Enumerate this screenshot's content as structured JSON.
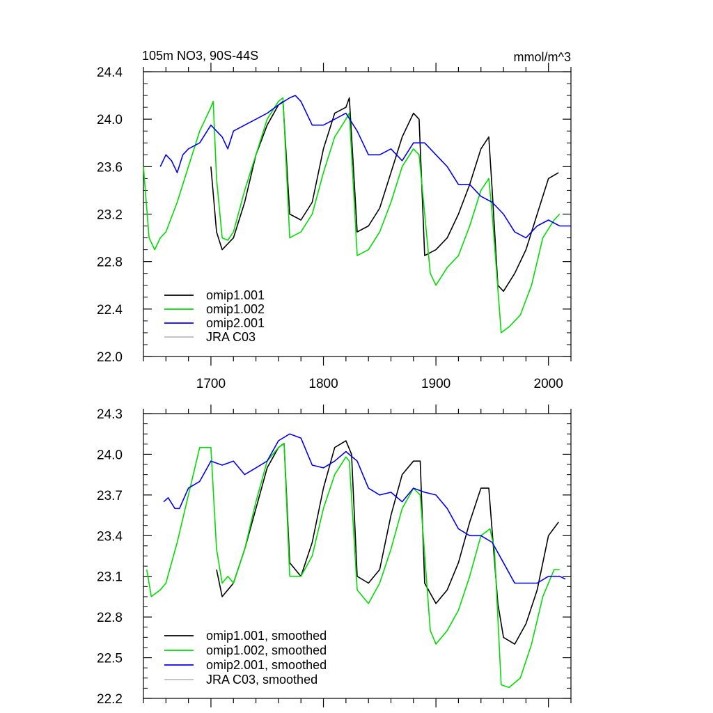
{
  "chart_data": [
    {
      "type": "line",
      "title": "105m NO3, 90S-44S",
      "units": "mmol/m^3",
      "xlim": [
        1640,
        2020
      ],
      "ylim": [
        22.0,
        24.4
      ],
      "yticks": [
        "22.0",
        "22.4",
        "22.8",
        "23.2",
        "23.6",
        "24.0",
        "24.4"
      ],
      "xticks": [
        "1700",
        "1800",
        "1900",
        "2000"
      ],
      "legend_position": "bottom-left",
      "series": [
        {
          "name": "omip1.001",
          "color": "#000000",
          "x": [
            1700,
            1705,
            1710,
            1715,
            1720,
            1730,
            1740,
            1750,
            1760,
            1764,
            1770,
            1780,
            1790,
            1800,
            1810,
            1820,
            1823,
            1830,
            1840,
            1850,
            1860,
            1870,
            1880,
            1885,
            1890,
            1900,
            1910,
            1920,
            1930,
            1940,
            1947,
            1950,
            1955,
            1960,
            1970,
            1980,
            1990,
            2000,
            2009
          ],
          "values": [
            23.6,
            23.05,
            22.9,
            22.95,
            23.0,
            23.3,
            23.7,
            23.95,
            24.12,
            24.15,
            23.2,
            23.15,
            23.3,
            23.75,
            24.05,
            24.1,
            24.18,
            23.05,
            23.1,
            23.25,
            23.55,
            23.85,
            24.05,
            24.0,
            22.85,
            22.9,
            23.0,
            23.2,
            23.45,
            23.75,
            23.85,
            23.4,
            22.6,
            22.55,
            22.7,
            22.9,
            23.2,
            23.5,
            23.55
          ]
        },
        {
          "name": "omip1.002",
          "color": "#00dd00",
          "x": [
            1640,
            1645,
            1650,
            1655,
            1660,
            1670,
            1680,
            1690,
            1700,
            1702,
            1705,
            1710,
            1715,
            1720,
            1730,
            1740,
            1750,
            1760,
            1764,
            1770,
            1780,
            1790,
            1800,
            1810,
            1820,
            1823,
            1830,
            1840,
            1850,
            1860,
            1870,
            1880,
            1885,
            1895,
            1900,
            1910,
            1920,
            1930,
            1940,
            1947,
            1950,
            1958,
            1965,
            1975,
            1985,
            1995,
            2005,
            2010
          ],
          "values": [
            23.6,
            23.0,
            22.9,
            23.0,
            23.05,
            23.3,
            23.6,
            23.9,
            24.1,
            24.15,
            23.5,
            23.0,
            22.98,
            23.05,
            23.4,
            23.7,
            24.0,
            24.15,
            24.18,
            23.0,
            23.05,
            23.2,
            23.55,
            23.85,
            24.0,
            24.05,
            22.85,
            22.9,
            23.05,
            23.3,
            23.6,
            23.75,
            23.7,
            22.7,
            22.6,
            22.75,
            22.85,
            23.1,
            23.4,
            23.5,
            23.2,
            22.2,
            22.25,
            22.35,
            22.6,
            23.0,
            23.15,
            23.2
          ]
        },
        {
          "name": "omip2.001",
          "color": "#0000ee",
          "x": [
            1655,
            1660,
            1665,
            1670,
            1675,
            1680,
            1690,
            1700,
            1705,
            1710,
            1715,
            1720,
            1730,
            1740,
            1750,
            1760,
            1765,
            1770,
            1775,
            1780,
            1790,
            1800,
            1810,
            1820,
            1830,
            1840,
            1850,
            1860,
            1870,
            1880,
            1890,
            1900,
            1910,
            1920,
            1930,
            1940,
            1950,
            1960,
            1970,
            1980,
            1990,
            2000,
            2010,
            2020
          ],
          "values": [
            23.6,
            23.7,
            23.65,
            23.55,
            23.7,
            23.75,
            23.8,
            23.95,
            23.9,
            23.85,
            23.75,
            23.9,
            23.95,
            24.0,
            24.05,
            24.12,
            24.15,
            24.18,
            24.2,
            24.15,
            23.95,
            23.95,
            24.0,
            24.05,
            23.9,
            23.7,
            23.7,
            23.75,
            23.65,
            23.8,
            23.8,
            23.7,
            23.6,
            23.45,
            23.45,
            23.35,
            23.3,
            23.2,
            23.05,
            23.0,
            23.1,
            23.15,
            23.1,
            23.1
          ]
        },
        {
          "name": "JRA C03",
          "color": "#bbbbbb",
          "x": [],
          "values": []
        }
      ]
    },
    {
      "type": "line",
      "title": "",
      "xlim": [
        1640,
        2020
      ],
      "ylim": [
        22.2,
        24.3
      ],
      "yticks": [
        "22.2",
        "22.5",
        "22.8",
        "23.1",
        "23.4",
        "23.7",
        "24.0",
        "24.3"
      ],
      "legend_position": "bottom-left",
      "series": [
        {
          "name": "omip1.001, smoothed",
          "color": "#000000",
          "x": [
            1705,
            1710,
            1715,
            1720,
            1730,
            1740,
            1750,
            1760,
            1765,
            1770,
            1780,
            1790,
            1800,
            1810,
            1820,
            1825,
            1830,
            1840,
            1850,
            1860,
            1870,
            1880,
            1886,
            1890,
            1900,
            1910,
            1920,
            1930,
            1940,
            1947,
            1955,
            1960,
            1970,
            1980,
            1990,
            2000,
            2009
          ],
          "values": [
            23.15,
            22.95,
            23.0,
            23.05,
            23.3,
            23.6,
            23.9,
            24.05,
            24.08,
            23.2,
            23.1,
            23.35,
            23.75,
            24.05,
            24.1,
            24.0,
            23.1,
            23.05,
            23.15,
            23.55,
            23.85,
            23.95,
            23.95,
            23.05,
            22.9,
            23.0,
            23.2,
            23.5,
            23.75,
            23.75,
            22.9,
            22.65,
            22.6,
            22.75,
            23.0,
            23.4,
            23.5
          ]
        },
        {
          "name": "omip1.002, smoothed",
          "color": "#00dd00",
          "x": [
            1643,
            1647,
            1655,
            1660,
            1670,
            1680,
            1690,
            1700,
            1705,
            1710,
            1715,
            1720,
            1730,
            1740,
            1750,
            1760,
            1765,
            1770,
            1780,
            1790,
            1800,
            1810,
            1820,
            1823,
            1830,
            1840,
            1850,
            1860,
            1870,
            1880,
            1886,
            1895,
            1900,
            1910,
            1920,
            1930,
            1940,
            1948,
            1952,
            1958,
            1965,
            1975,
            1985,
            1995,
            2005,
            2010
          ],
          "values": [
            23.15,
            22.95,
            23.0,
            23.05,
            23.35,
            23.7,
            24.05,
            24.05,
            23.3,
            23.05,
            23.1,
            23.05,
            23.3,
            23.65,
            23.95,
            24.05,
            24.08,
            23.1,
            23.1,
            23.25,
            23.6,
            23.85,
            23.98,
            23.95,
            23.0,
            22.9,
            23.05,
            23.3,
            23.6,
            23.75,
            23.7,
            22.7,
            22.6,
            22.7,
            22.85,
            23.1,
            23.4,
            23.45,
            23.3,
            22.3,
            22.28,
            22.35,
            22.6,
            22.95,
            23.15,
            23.15
          ]
        },
        {
          "name": "omip2.001, smoothed",
          "color": "#0000ee",
          "x": [
            1658,
            1662,
            1668,
            1672,
            1680,
            1690,
            1700,
            1710,
            1720,
            1730,
            1740,
            1750,
            1760,
            1770,
            1780,
            1790,
            1800,
            1810,
            1820,
            1830,
            1840,
            1850,
            1860,
            1870,
            1880,
            1890,
            1900,
            1910,
            1920,
            1930,
            1940,
            1950,
            1960,
            1970,
            1980,
            1990,
            2000,
            2010,
            2015
          ],
          "values": [
            23.65,
            23.68,
            23.6,
            23.6,
            23.75,
            23.8,
            23.95,
            23.92,
            23.95,
            23.85,
            23.9,
            23.95,
            24.1,
            24.15,
            24.12,
            23.92,
            23.9,
            23.95,
            24.02,
            23.95,
            23.75,
            23.7,
            23.72,
            23.65,
            23.75,
            23.72,
            23.7,
            23.6,
            23.45,
            23.4,
            23.4,
            23.35,
            23.2,
            23.05,
            23.05,
            23.05,
            23.1,
            23.1,
            23.08
          ]
        },
        {
          "name": "JRA C03, smoothed",
          "color": "#bbbbbb",
          "x": [],
          "values": []
        }
      ]
    }
  ]
}
